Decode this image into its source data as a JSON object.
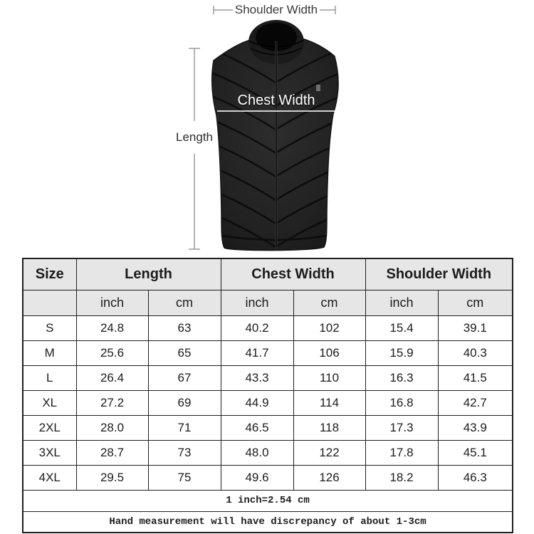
{
  "diagram": {
    "shoulder_width_label": "Shoulder Width",
    "chest_width_label": "Chest Width",
    "length_label": "Length",
    "illustration": "black puffer vest with high collar and center zipper"
  },
  "colors": {
    "header_bg": "#e6e6e6",
    "border": "#1f1f1f",
    "vest": "#222222",
    "seam": "#0b0b0b",
    "annotation": "#9a9a9a",
    "chest_line": "#d0d0d0"
  },
  "size_table": {
    "group_headers": [
      {
        "label": "Size",
        "span": 1
      },
      {
        "label": "Length",
        "span": 2
      },
      {
        "label": "Chest Width",
        "span": 2
      },
      {
        "label": "Shoulder Width",
        "span": 2
      }
    ],
    "unit_row": [
      "",
      "inch",
      "cm",
      "inch",
      "cm",
      "inch",
      "cm"
    ],
    "rows": [
      {
        "size": "S",
        "values": [
          "24.8",
          "63",
          "40.2",
          "102",
          "15.4",
          "39.1"
        ]
      },
      {
        "size": "M",
        "values": [
          "25.6",
          "65",
          "41.7",
          "106",
          "15.9",
          "40.3"
        ]
      },
      {
        "size": "L",
        "values": [
          "26.4",
          "67",
          "43.3",
          "110",
          "16.3",
          "41.5"
        ]
      },
      {
        "size": "XL",
        "values": [
          "27.2",
          "69",
          "44.9",
          "114",
          "16.8",
          "42.7"
        ]
      },
      {
        "size": "2XL",
        "values": [
          "28.0",
          "71",
          "46.5",
          "118",
          "17.3",
          "43.9"
        ]
      },
      {
        "size": "3XL",
        "values": [
          "28.7",
          "73",
          "48.0",
          "122",
          "17.8",
          "45.1"
        ]
      },
      {
        "size": "4XL",
        "values": [
          "29.5",
          "75",
          "49.6",
          "126",
          "18.2",
          "46.3"
        ]
      }
    ],
    "notes": [
      "1 inch=2.54 cm",
      "Hand measurement will have discrepancy of about 1-3cm"
    ]
  }
}
